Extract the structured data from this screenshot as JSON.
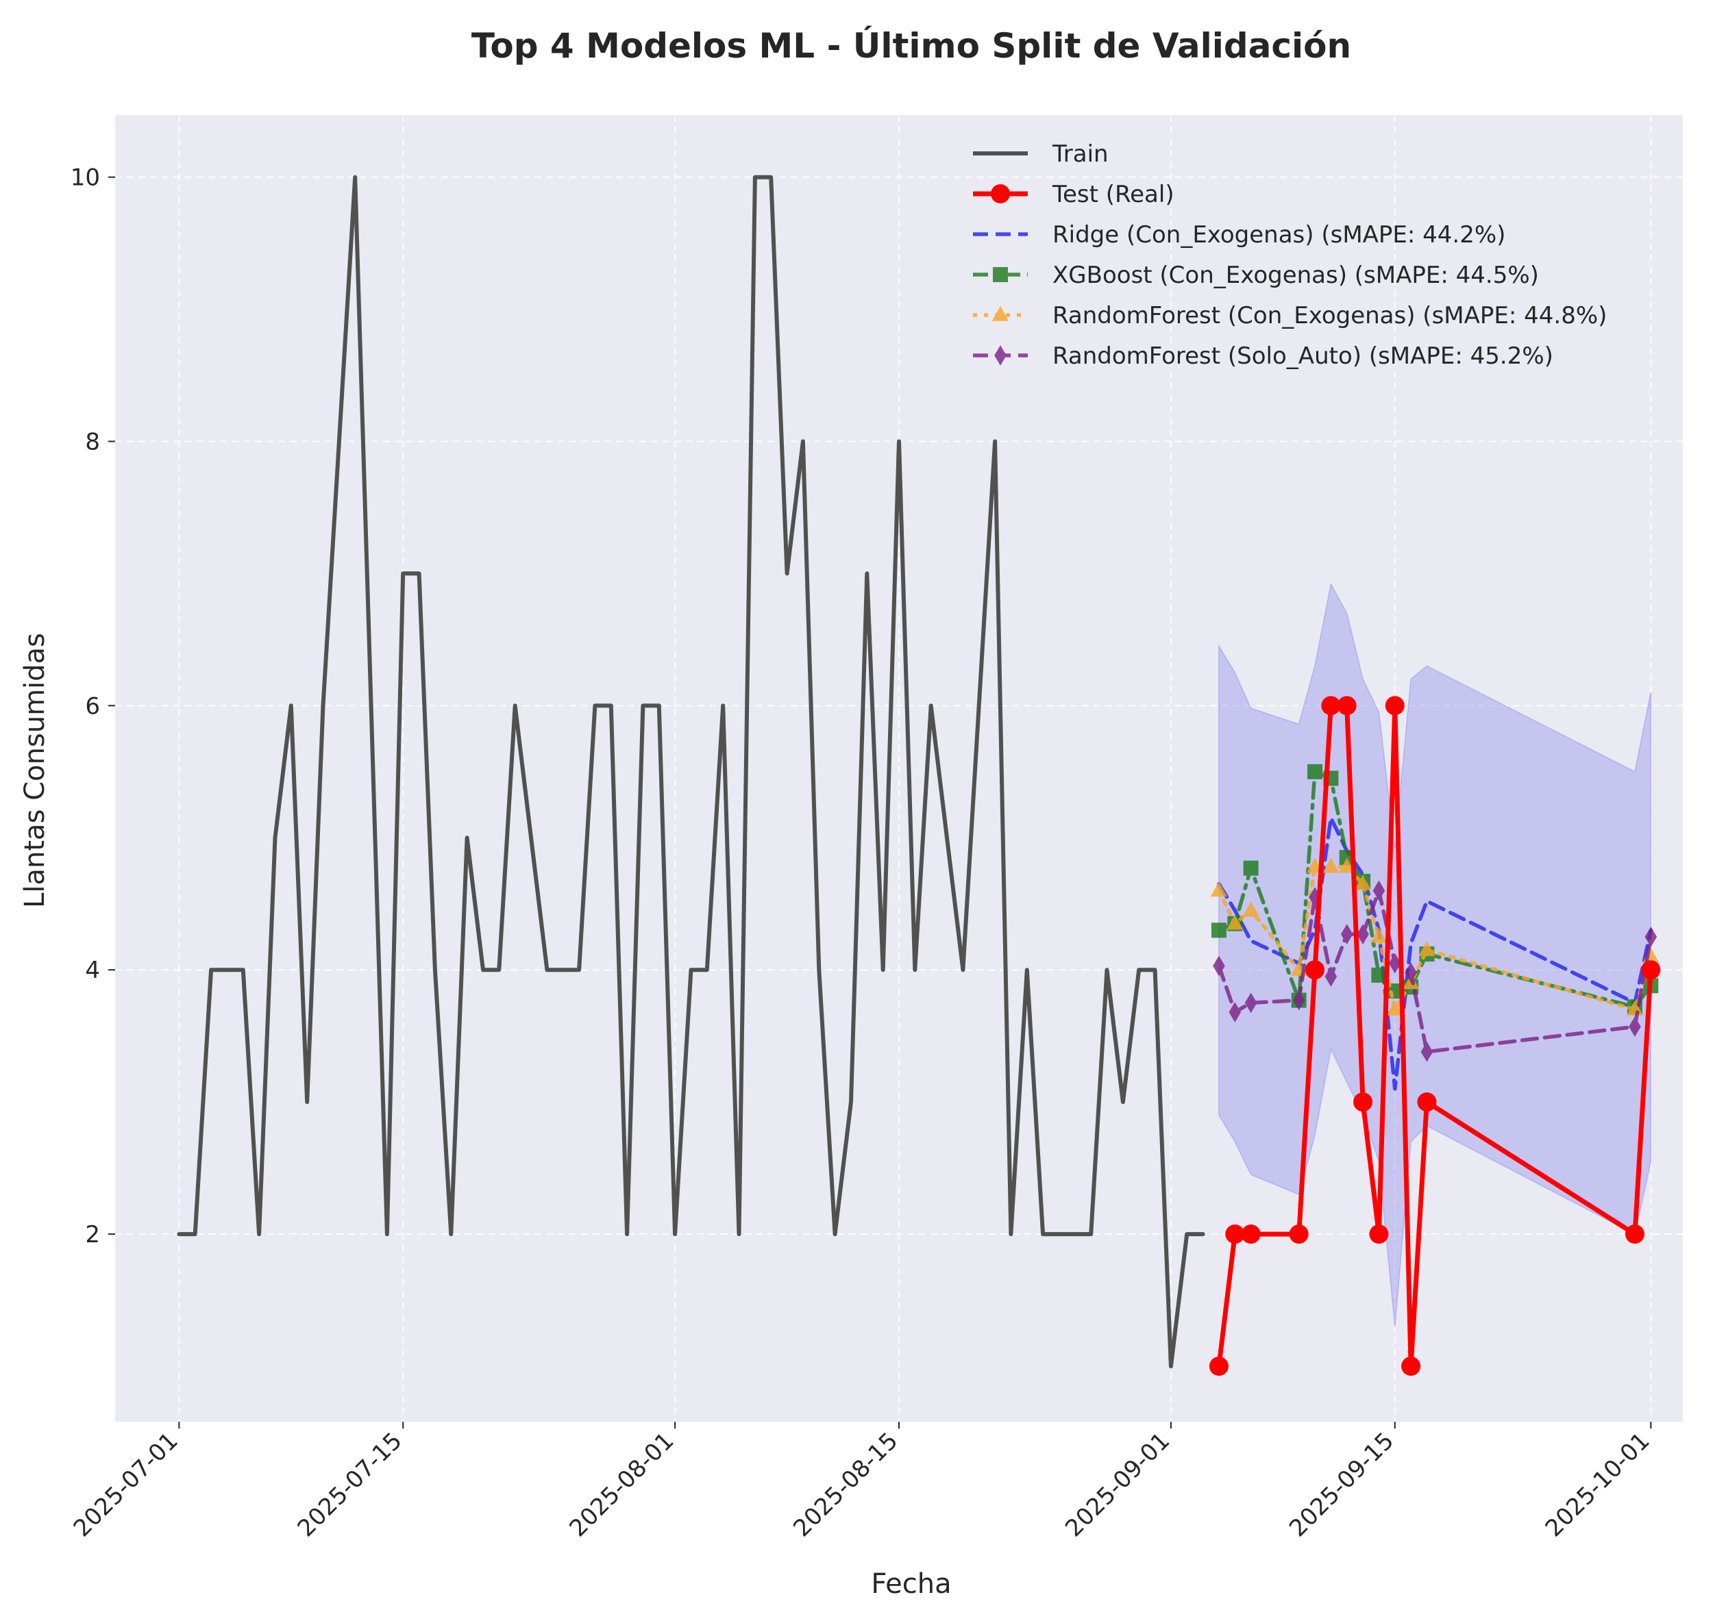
{
  "chart_data": {
    "type": "line",
    "title": "Top 4 Modelos ML - Último Split de Validación",
    "xlabel": "Fecha",
    "ylabel": "Llantas Consumidas",
    "x_range": [
      "2025-06-27",
      "2025-10-03"
    ],
    "ylim": [
      0.58,
      10.47
    ],
    "x_ticks": [
      "2025-07-01",
      "2025-07-15",
      "2025-08-01",
      "2025-08-15",
      "2025-09-01",
      "2025-09-15",
      "2025-10-01"
    ],
    "y_ticks": [
      2,
      4,
      6,
      8,
      10
    ],
    "grid": true,
    "legend_position": "top-right",
    "colors": {
      "background": "#eaeaf2",
      "grid": "#ffffff",
      "train": "#404040",
      "test": "#ff0000",
      "ridge": "#2222ee",
      "xgboost": "#1a7a1a",
      "rf_exo": "#f5a623",
      "rf_auto": "#7b1f86",
      "band": "#9999ee"
    },
    "series": [
      {
        "name": "Train",
        "key": "train",
        "style": "solid",
        "marker": "none",
        "points": [
          [
            "2025-07-01",
            2
          ],
          [
            "2025-07-02",
            2
          ],
          [
            "2025-07-03",
            4
          ],
          [
            "2025-07-04",
            4
          ],
          [
            "2025-07-05",
            4
          ],
          [
            "2025-07-06",
            2
          ],
          [
            "2025-07-07",
            5
          ],
          [
            "2025-07-08",
            6
          ],
          [
            "2025-07-09",
            3
          ],
          [
            "2025-07-10",
            6
          ],
          [
            "2025-07-11",
            8
          ],
          [
            "2025-07-12",
            10
          ],
          [
            "2025-07-13",
            6
          ],
          [
            "2025-07-14",
            2
          ],
          [
            "2025-07-15",
            7
          ],
          [
            "2025-07-16",
            7
          ],
          [
            "2025-07-17",
            4
          ],
          [
            "2025-07-18",
            2
          ],
          [
            "2025-07-19",
            5
          ],
          [
            "2025-07-20",
            4
          ],
          [
            "2025-07-21",
            4
          ],
          [
            "2025-07-22",
            6
          ],
          [
            "2025-07-24",
            4
          ],
          [
            "2025-07-26",
            4
          ],
          [
            "2025-07-27",
            6
          ],
          [
            "2025-07-28",
            6
          ],
          [
            "2025-07-29",
            2
          ],
          [
            "2025-07-30",
            6
          ],
          [
            "2025-07-31",
            6
          ],
          [
            "2025-08-01",
            2
          ],
          [
            "2025-08-02",
            4
          ],
          [
            "2025-08-03",
            4
          ],
          [
            "2025-08-04",
            6
          ],
          [
            "2025-08-05",
            2
          ],
          [
            "2025-08-06",
            10
          ],
          [
            "2025-08-07",
            10
          ],
          [
            "2025-08-08",
            7
          ],
          [
            "2025-08-09",
            8
          ],
          [
            "2025-08-10",
            4
          ],
          [
            "2025-08-11",
            2
          ],
          [
            "2025-08-12",
            3
          ],
          [
            "2025-08-13",
            7
          ],
          [
            "2025-08-14",
            4
          ],
          [
            "2025-08-15",
            8
          ],
          [
            "2025-08-16",
            4
          ],
          [
            "2025-08-17",
            6
          ],
          [
            "2025-08-18",
            5
          ],
          [
            "2025-08-19",
            4
          ],
          [
            "2025-08-20",
            6
          ],
          [
            "2025-08-21",
            8
          ],
          [
            "2025-08-22",
            2
          ],
          [
            "2025-08-23",
            4
          ],
          [
            "2025-08-24",
            2
          ],
          [
            "2025-08-27",
            2
          ],
          [
            "2025-08-28",
            4
          ],
          [
            "2025-08-29",
            3
          ],
          [
            "2025-08-30",
            4
          ],
          [
            "2025-08-31",
            4
          ],
          [
            "2025-09-01",
            1
          ],
          [
            "2025-09-02",
            2
          ],
          [
            "2025-09-03",
            2
          ]
        ]
      },
      {
        "name": "Test (Real)",
        "key": "test",
        "style": "solid",
        "marker": "circle",
        "points": [
          [
            "2025-09-04",
            1
          ],
          [
            "2025-09-05",
            2
          ],
          [
            "2025-09-06",
            2
          ],
          [
            "2025-09-09",
            2
          ],
          [
            "2025-09-10",
            4
          ],
          [
            "2025-09-11",
            6
          ],
          [
            "2025-09-12",
            6
          ],
          [
            "2025-09-13",
            3
          ],
          [
            "2025-09-14",
            2
          ],
          [
            "2025-09-15",
            6
          ],
          [
            "2025-09-16",
            1
          ],
          [
            "2025-09-17",
            3
          ],
          [
            "2025-09-30",
            2
          ],
          [
            "2025-10-01",
            4
          ]
        ]
      },
      {
        "name": "Ridge (Con_Exogenas) (sMAPE: 44.2%)",
        "key": "ridge",
        "style": "dashed",
        "marker": "none",
        "points": [
          [
            "2025-09-04",
            4.65
          ],
          [
            "2025-09-05",
            4.45
          ],
          [
            "2025-09-06",
            4.22
          ],
          [
            "2025-09-09",
            4.05
          ],
          [
            "2025-09-10",
            4.3
          ],
          [
            "2025-09-11",
            5.15
          ],
          [
            "2025-09-12",
            4.9
          ],
          [
            "2025-09-13",
            4.72
          ],
          [
            "2025-09-14",
            4.3
          ],
          [
            "2025-09-15",
            3.1
          ],
          [
            "2025-09-16",
            4.2
          ],
          [
            "2025-09-17",
            4.52
          ],
          [
            "2025-09-30",
            3.75
          ],
          [
            "2025-10-01",
            4.3
          ]
        ]
      },
      {
        "name": "XGBoost (Con_Exogenas) (sMAPE: 44.5%)",
        "key": "xgboost",
        "style": "dashdot",
        "marker": "square",
        "points": [
          [
            "2025-09-04",
            4.3
          ],
          [
            "2025-09-05",
            4.35
          ],
          [
            "2025-09-06",
            4.77
          ],
          [
            "2025-09-09",
            3.77
          ],
          [
            "2025-09-10",
            5.5
          ],
          [
            "2025-09-11",
            5.45
          ],
          [
            "2025-09-12",
            4.85
          ],
          [
            "2025-09-13",
            4.67
          ],
          [
            "2025-09-14",
            3.96
          ],
          [
            "2025-09-15",
            3.84
          ],
          [
            "2025-09-16",
            3.87
          ],
          [
            "2025-09-17",
            4.12
          ],
          [
            "2025-09-30",
            3.72
          ],
          [
            "2025-10-01",
            3.88
          ]
        ]
      },
      {
        "name": "RandomForest (Con_Exogenas) (sMAPE: 44.8%)",
        "key": "rf_exo",
        "style": "dotted",
        "marker": "triangle",
        "points": [
          [
            "2025-09-04",
            4.6
          ],
          [
            "2025-09-05",
            4.35
          ],
          [
            "2025-09-06",
            4.45
          ],
          [
            "2025-09-09",
            4.0
          ],
          [
            "2025-09-10",
            4.78
          ],
          [
            "2025-09-11",
            4.78
          ],
          [
            "2025-09-12",
            4.78
          ],
          [
            "2025-09-13",
            4.65
          ],
          [
            "2025-09-14",
            4.25
          ],
          [
            "2025-09-15",
            3.7
          ],
          [
            "2025-09-16",
            3.9
          ],
          [
            "2025-09-17",
            4.15
          ],
          [
            "2025-09-30",
            3.7
          ],
          [
            "2025-10-01",
            4.1
          ]
        ]
      },
      {
        "name": "RandomForest (Solo_Auto) (sMAPE: 45.2%)",
        "key": "rf_auto",
        "style": "dashed",
        "marker": "diamond",
        "points": [
          [
            "2025-09-04",
            4.03
          ],
          [
            "2025-09-05",
            3.68
          ],
          [
            "2025-09-06",
            3.75
          ],
          [
            "2025-09-09",
            3.77
          ],
          [
            "2025-09-10",
            4.55
          ],
          [
            "2025-09-11",
            3.95
          ],
          [
            "2025-09-12",
            4.27
          ],
          [
            "2025-09-13",
            4.27
          ],
          [
            "2025-09-14",
            4.6
          ],
          [
            "2025-09-15",
            4.05
          ],
          [
            "2025-09-16",
            3.98
          ],
          [
            "2025-09-17",
            3.38
          ],
          [
            "2025-09-30",
            3.57
          ],
          [
            "2025-10-01",
            4.25
          ]
        ]
      }
    ],
    "interval_band": {
      "series_key": "ridge",
      "points": [
        [
          "2025-09-04",
          2.9,
          6.45
        ],
        [
          "2025-09-05",
          2.7,
          6.25
        ],
        [
          "2025-09-06",
          2.45,
          5.98
        ],
        [
          "2025-09-09",
          2.3,
          5.86
        ],
        [
          "2025-09-10",
          2.75,
          6.3
        ],
        [
          "2025-09-11",
          3.4,
          6.92
        ],
        [
          "2025-09-12",
          3.15,
          6.7
        ],
        [
          "2025-09-13",
          2.9,
          6.2
        ],
        [
          "2025-09-14",
          2.55,
          5.95
        ],
        [
          "2025-09-15",
          1.3,
          4.92
        ],
        [
          "2025-09-16",
          2.7,
          6.2
        ],
        [
          "2025-09-17",
          2.82,
          6.3
        ],
        [
          "2025-09-30",
          2.0,
          5.5
        ],
        [
          "2025-10-01",
          2.55,
          6.1
        ]
      ]
    }
  }
}
